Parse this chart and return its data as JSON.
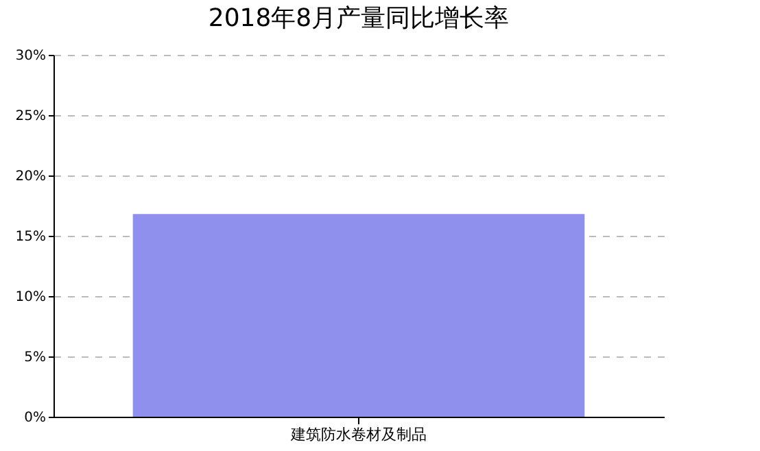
{
  "chart_data": {
    "type": "bar",
    "title": "2018年8月产量同比增长率",
    "categories": [
      "建筑防水卷材及制品"
    ],
    "values": [
      16.8
    ],
    "color": "#8f8fee",
    "ylim": [
      0,
      30
    ],
    "yticks": [
      {
        "value": 0,
        "label": "0%"
      },
      {
        "value": 5,
        "label": "5%"
      },
      {
        "value": 10,
        "label": "10%"
      },
      {
        "value": 15,
        "label": "15%"
      },
      {
        "value": 20,
        "label": "20%"
      },
      {
        "value": 25,
        "label": "25%"
      },
      {
        "value": 30,
        "label": "30%"
      }
    ],
    "grid": "y"
  }
}
